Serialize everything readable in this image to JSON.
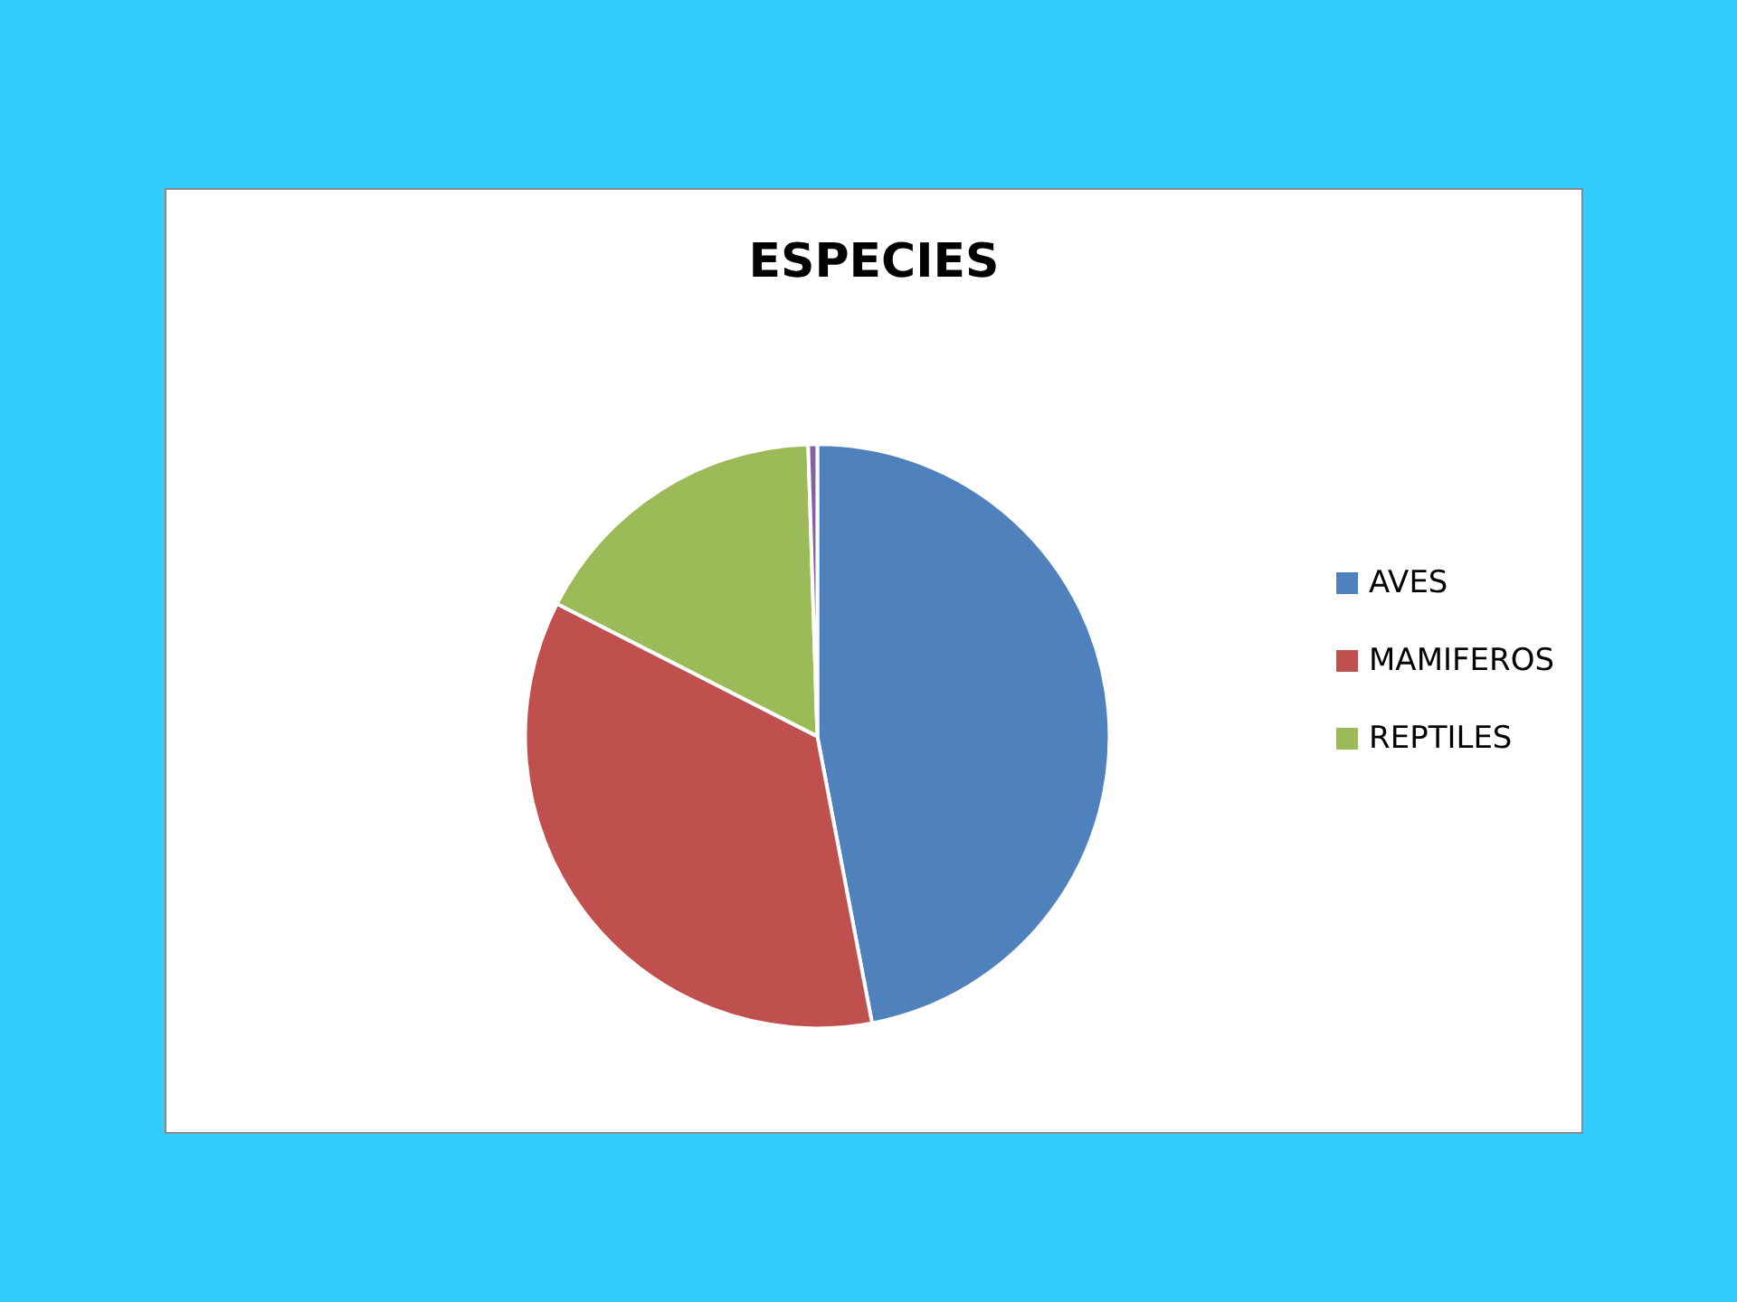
{
  "chart_data": {
    "type": "pie",
    "title": "ESPECIES",
    "categories": [
      "AVES",
      "MAMIFEROS",
      "REPTILES",
      null
    ],
    "values": [
      47,
      35.5,
      17,
      0.5
    ],
    "colors": [
      "#4f81bd",
      "#c0504d",
      "#9bbb59",
      "#8064a2"
    ],
    "legend": "right"
  }
}
